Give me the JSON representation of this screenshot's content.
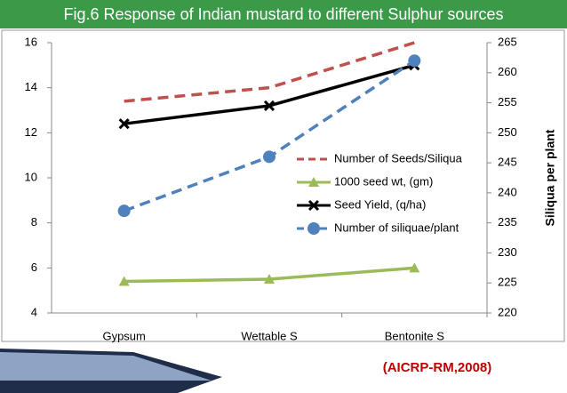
{
  "chart_data": {
    "type": "line",
    "title": "Fig.6 Response of Indian mustard to different Sulphur sources",
    "y2_label": "Siliqua per plant",
    "source": "(AICRP-RM,2008)",
    "categories": [
      "Gypsum",
      "Wettable S",
      "Bentonite S"
    ],
    "series": [
      {
        "name": "Number of Seeds/Siliqua",
        "color": "#c0504d",
        "dash": true,
        "marker": "none",
        "values": [
          13.4,
          14.0,
          16.0
        ]
      },
      {
        "name": "1000 seed wt, (gm)",
        "color": "#9bbb59",
        "dash": false,
        "marker": "triangle",
        "values": [
          5.4,
          5.5,
          6.0
        ]
      },
      {
        "name": "Seed Yield, (q/ha)",
        "color": "#000000",
        "dash": false,
        "marker": "cross",
        "values": [
          12.4,
          13.2,
          15.0
        ]
      },
      {
        "name": "Number of siliquae/plant",
        "color": "#4f81bd",
        "dash": true,
        "marker": "circle",
        "axis": "y2",
        "values": [
          237,
          246,
          262
        ]
      }
    ],
    "ylim": [
      4,
      16
    ],
    "yticks": [
      4,
      6,
      8,
      10,
      12,
      14,
      16
    ],
    "y2lim": [
      220,
      265
    ],
    "y2ticks": [
      220,
      225,
      230,
      235,
      240,
      245,
      250,
      255,
      260,
      265
    ],
    "legend": "right"
  }
}
